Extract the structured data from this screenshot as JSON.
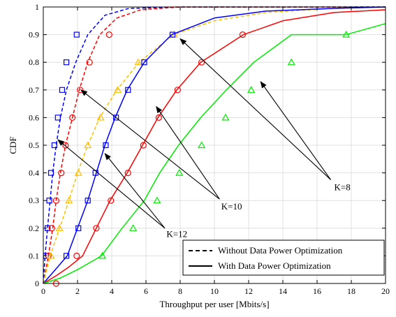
{
  "chart_data": {
    "type": "line",
    "title": "",
    "xlabel": "Throughput per user [Mbits/s]",
    "ylabel": "CDF",
    "xlim": [
      0,
      20
    ],
    "ylim": [
      0,
      1
    ],
    "xticks": [
      0,
      2,
      4,
      6,
      8,
      10,
      12,
      14,
      16,
      18,
      20
    ],
    "yticks": [
      0,
      0.1,
      0.2,
      0.3,
      0.4,
      0.5,
      0.6,
      0.7,
      0.8,
      0.9,
      1
    ],
    "grid": true,
    "legend": {
      "placement": "bottom-right",
      "entries": [
        {
          "label": "Without Data Power Optimization",
          "style": "dashed"
        },
        {
          "label": "With Data Power Optimization",
          "style": "solid"
        }
      ]
    },
    "series": [
      {
        "group": "K=12",
        "style": "dashed",
        "color": "#0000ff",
        "marker": "square",
        "x": [
          0,
          0.1,
          0.25,
          0.4,
          0.55,
          0.75,
          1.0,
          1.35,
          1.9,
          2.6,
          3.6,
          5.0,
          8.0,
          12,
          20
        ],
        "y": [
          0,
          0.1,
          0.2,
          0.3,
          0.4,
          0.5,
          0.6,
          0.7,
          0.8,
          0.9,
          0.97,
          0.995,
          1.0,
          1.0,
          1.0
        ],
        "markers": [
          [
            0.15,
            0.1
          ],
          [
            0.25,
            0.2
          ],
          [
            0.35,
            0.3
          ],
          [
            0.45,
            0.4
          ],
          [
            0.65,
            0.5
          ],
          [
            0.85,
            0.6
          ],
          [
            1.1,
            0.7
          ],
          [
            1.35,
            0.8
          ],
          [
            1.95,
            0.9
          ]
        ]
      },
      {
        "group": "K=10",
        "style": "dashed",
        "color": "#ff0000",
        "marker": "circle",
        "x": [
          0,
          0.3,
          0.55,
          0.75,
          1.0,
          1.3,
          1.7,
          2.1,
          2.6,
          3.3,
          4.3,
          5.7,
          8.0,
          12,
          20
        ],
        "y": [
          0,
          0.1,
          0.2,
          0.3,
          0.4,
          0.5,
          0.6,
          0.7,
          0.8,
          0.9,
          0.96,
          0.99,
          1.0,
          1.0,
          1.0
        ],
        "markers": [
          [
            0.3,
            0.1
          ],
          [
            0.5,
            0.2
          ],
          [
            0.75,
            0.3
          ],
          [
            1.05,
            0.4
          ],
          [
            1.3,
            0.5
          ],
          [
            1.7,
            0.6
          ],
          [
            2.15,
            0.7
          ],
          [
            2.7,
            0.8
          ],
          [
            3.85,
            0.9
          ]
        ]
      },
      {
        "group": "K=8",
        "style": "dashed",
        "color": "#ffc000",
        "marker": "triangle",
        "x": [
          0,
          0.4,
          0.95,
          1.5,
          2.0,
          2.6,
          3.3,
          4.3,
          5.6,
          7.6,
          10,
          13,
          17,
          20
        ],
        "y": [
          0,
          0.1,
          0.2,
          0.3,
          0.4,
          0.5,
          0.6,
          0.7,
          0.8,
          0.9,
          0.95,
          0.98,
          0.995,
          1.0
        ],
        "markers": [
          [
            0.45,
            0.1
          ],
          [
            0.95,
            0.2
          ],
          [
            1.5,
            0.3
          ],
          [
            2.05,
            0.4
          ],
          [
            2.6,
            0.5
          ],
          [
            3.35,
            0.6
          ],
          [
            4.35,
            0.7
          ],
          [
            5.55,
            0.8
          ],
          [
            7.65,
            0.9
          ]
        ]
      },
      {
        "group": "K=12",
        "style": "solid",
        "color": "#0000ff",
        "marker": "square",
        "x": [
          0,
          0.7,
          1.4,
          2.0,
          2.6,
          3.1,
          3.6,
          4.2,
          4.9,
          5.9,
          7.5,
          10,
          13,
          17,
          20
        ],
        "y": [
          0,
          0.05,
          0.1,
          0.2,
          0.3,
          0.4,
          0.5,
          0.6,
          0.7,
          0.8,
          0.9,
          0.96,
          0.985,
          0.995,
          1.0
        ],
        "markers": [
          [
            1.35,
            0.1
          ],
          [
            2.05,
            0.2
          ],
          [
            2.6,
            0.3
          ],
          [
            3.05,
            0.4
          ],
          [
            3.65,
            0.5
          ],
          [
            4.25,
            0.6
          ],
          [
            4.95,
            0.7
          ],
          [
            5.9,
            0.8
          ],
          [
            7.55,
            0.9
          ]
        ]
      },
      {
        "group": "K=10",
        "style": "solid",
        "color": "#ff0000",
        "marker": "circle",
        "x": [
          0,
          0.8,
          1.5,
          2.3,
          3.1,
          3.9,
          4.9,
          5.8,
          6.7,
          7.8,
          9.2,
          11.7,
          14,
          17,
          20
        ],
        "y": [
          0,
          0.03,
          0.06,
          0.1,
          0.2,
          0.3,
          0.4,
          0.5,
          0.6,
          0.7,
          0.8,
          0.9,
          0.95,
          0.98,
          0.99
        ],
        "markers": [
          [
            0.75,
            0.0
          ],
          [
            1.95,
            0.1
          ],
          [
            3.1,
            0.2
          ],
          [
            3.95,
            0.3
          ],
          [
            4.95,
            0.4
          ],
          [
            5.85,
            0.5
          ],
          [
            6.75,
            0.6
          ],
          [
            7.85,
            0.7
          ],
          [
            9.25,
            0.8
          ],
          [
            11.65,
            0.9
          ]
        ]
      },
      {
        "group": "K=8",
        "style": "solid",
        "color": "#00ee00",
        "marker": "triangle",
        "x": [
          0,
          1.0,
          2.0,
          3.4,
          4.6,
          5.9,
          6.8,
          7.9,
          9.2,
          10.7,
          12.3,
          14.5,
          17.7,
          20
        ],
        "y": [
          0,
          0.02,
          0.05,
          0.1,
          0.2,
          0.3,
          0.4,
          0.5,
          0.6,
          0.7,
          0.8,
          0.9,
          0.9,
          0.94
        ],
        "markers": [
          [
            3.45,
            0.1
          ],
          [
            5.25,
            0.2
          ],
          [
            6.65,
            0.3
          ],
          [
            7.95,
            0.4
          ],
          [
            9.25,
            0.5
          ],
          [
            10.65,
            0.6
          ],
          [
            12.15,
            0.7
          ],
          [
            14.5,
            0.8
          ],
          [
            17.7,
            0.9
          ]
        ]
      }
    ],
    "annotations": [
      {
        "text": "K=8",
        "label_at": [
          17.0,
          0.35
        ],
        "arrow_from": [
          16.8,
          0.375
        ],
        "arrow_to": [
          [
            8.0,
            0.885
          ],
          [
            12.7,
            0.73
          ]
        ]
      },
      {
        "text": "K=10",
        "label_at": [
          10.4,
          0.28
        ],
        "arrow_from": [
          10.3,
          0.305
        ],
        "arrow_to": [
          [
            2.2,
            0.7
          ],
          [
            6.6,
            0.64
          ]
        ]
      },
      {
        "text": "K=12",
        "label_at": [
          7.2,
          0.18
        ],
        "arrow_from": [
          7.1,
          0.2
        ],
        "arrow_to": [
          [
            0.85,
            0.52
          ],
          [
            3.6,
            0.47
          ]
        ]
      }
    ]
  }
}
